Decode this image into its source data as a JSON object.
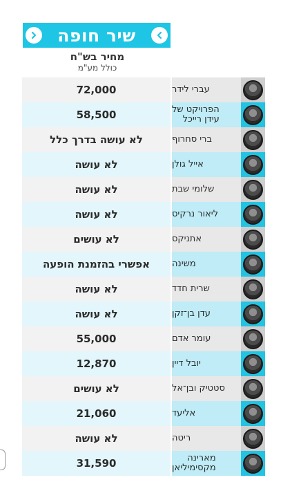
{
  "header": {
    "title": "שיר חופה",
    "icons": {
      "left": "chevron-right-icon",
      "right": "chevron-left-icon"
    },
    "color": "#1ec5e4"
  },
  "price_header": {
    "title": "מחיר בש\"ח",
    "subtitle": "כולל מע\"מ"
  },
  "rows": [
    {
      "name": "עברי לידר",
      "name2": "",
      "price": "72,000"
    },
    {
      "name": "הפרויקט של",
      "name2": "עידן רייכל",
      "price": "58,500"
    },
    {
      "name": "ברי סחרוף",
      "name2": "",
      "price": "לא עושה בדרך כלל"
    },
    {
      "name": "אייל גולן",
      "name2": "",
      "price": "לא עושה"
    },
    {
      "name": "שלומי שבת",
      "name2": "",
      "price": "לא עושה"
    },
    {
      "name": "ליאור נרקיס",
      "name2": "",
      "price": "לא עושה"
    },
    {
      "name": "אתניקס",
      "name2": "",
      "price": "לא עושים"
    },
    {
      "name": "משינה",
      "name2": "",
      "price": "אפשרי בהזמנת הופעה"
    },
    {
      "name": "שרית חדד",
      "name2": "",
      "price": "לא עושה"
    },
    {
      "name": "עדן בן־זקן",
      "name2": "",
      "price": "לא עושה"
    },
    {
      "name": "עומר אדם",
      "name2": "",
      "price": "55,000"
    },
    {
      "name": "יובל דיין",
      "name2": "",
      "price": "12,870"
    },
    {
      "name": "סטטיק ובן־אל",
      "name2": "",
      "price": "לא עושים"
    },
    {
      "name": "אליעד",
      "name2": "",
      "price": "21,060"
    },
    {
      "name": "ריטה",
      "name2": "",
      "price": "לא עושה"
    },
    {
      "name": "מארינה",
      "name2": "מקסימיליאן",
      "price": "31,590"
    }
  ],
  "colors": {
    "odd_price_bg": "#f2f2f2",
    "odd_name_bg": "#e8e8e8",
    "odd_avatar_bg": "#cfcfcf",
    "even_price_bg": "#e3f6fb",
    "even_name_bg": "#bfecf6",
    "even_avatar_bg": "#25c3e2"
  }
}
